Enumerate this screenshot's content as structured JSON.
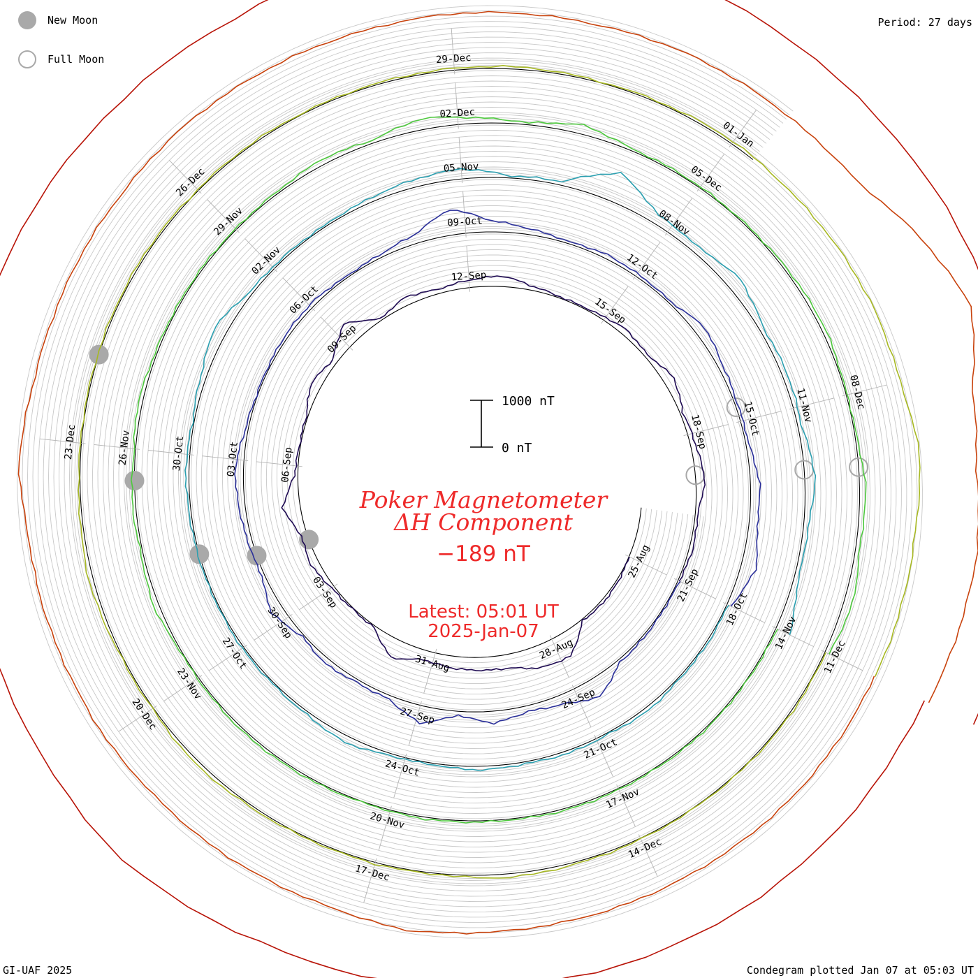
{
  "header": {
    "period": "Period: 27 days",
    "credit": "GI-UAF 2025",
    "plotted": "Condegram plotted Jan 07 at 05:03 UT"
  },
  "legend": {
    "new_moon": "New Moon",
    "full_moon": "Full Moon",
    "new_moon_color": "#a9a9a9",
    "full_moon_color": "#a9a9a9"
  },
  "center": {
    "title_line1": "Poker Magnetometer",
    "title_line2": "ΔH Component",
    "current_value": "−189 nT",
    "latest_time": "Latest: 05:01 UT",
    "latest_date": "2025-Jan-07",
    "text_color": "#ee2a2a"
  },
  "scale_bar": {
    "top_label": "1000 nT",
    "bottom_label": "0 nT"
  },
  "chart_data": {
    "type": "line",
    "plot_style": "spiral condegram (polar time spiral)",
    "period_days": 27,
    "grid": true,
    "units": "nT",
    "date_labels": [
      "25-Aug",
      "28-Aug",
      "31-Aug",
      "03-Sep",
      "06-Sep",
      "09-Sep",
      "12-Sep",
      "15-Sep",
      "18-Sep",
      "21-Sep",
      "24-Sep",
      "27-Sep",
      "30-Sep",
      "03-Oct",
      "06-Oct",
      "09-Oct",
      "12-Oct",
      "15-Oct",
      "18-Oct",
      "21-Oct",
      "24-Oct",
      "27-Oct",
      "30-Oct",
      "02-Nov",
      "05-Nov",
      "08-Nov",
      "11-Nov",
      "14-Nov",
      "17-Nov",
      "20-Nov",
      "23-Nov",
      "26-Nov",
      "29-Nov",
      "02-Dec",
      "05-Dec",
      "08-Dec",
      "11-Dec",
      "14-Dec",
      "17-Dec",
      "20-Dec",
      "23-Dec",
      "26-Dec",
      "29-Dec",
      "01-Jan"
    ],
    "series": [
      {
        "color": "#1e0a52",
        "values": [
          0,
          40,
          60,
          30,
          520,
          480,
          300,
          280,
          260,
          200,
          420,
          40,
          20,
          60,
          180,
          120,
          380,
          70,
          20,
          30,
          220,
          100,
          450,
          30,
          180,
          90,
          160,
          230,
          80,
          20,
          40,
          130,
          60,
          230,
          60,
          110,
          200,
          50,
          80,
          30
        ]
      },
      {
        "color": "#2a2f9a",
        "values": [
          30,
          20,
          40,
          60,
          420,
          200,
          120,
          260,
          80,
          380,
          80,
          60,
          120,
          40,
          260,
          60,
          90,
          140,
          180,
          60,
          20,
          40,
          70,
          80,
          30,
          60,
          180,
          560,
          240,
          120,
          40,
          90,
          60,
          40,
          220,
          100,
          50,
          60,
          200,
          180,
          330,
          90
        ]
      },
      {
        "color": "#2a9fb0",
        "values": [
          20,
          40,
          30,
          80,
          30,
          60,
          40,
          80,
          30,
          40,
          150,
          60,
          30,
          40,
          20,
          30,
          40,
          70,
          30,
          120,
          280,
          60,
          40,
          30,
          80,
          160,
          220,
          40,
          80,
          650,
          200,
          140,
          300,
          90,
          110,
          80,
          230,
          100,
          90,
          330
        ]
      },
      {
        "color": "#4ec93e",
        "values": [
          30,
          20,
          20,
          30,
          20,
          30,
          40,
          20,
          30,
          40,
          10,
          30,
          40,
          50,
          30,
          20,
          120,
          40,
          70,
          30,
          90,
          40,
          30,
          30,
          20,
          40,
          120,
          60,
          240,
          120,
          40,
          200,
          40,
          30,
          20,
          30,
          60,
          80,
          20,
          30,
          140,
          80,
          190,
          100
        ]
      },
      {
        "color": "#a7b822",
        "values": [
          20,
          30,
          20,
          10,
          20,
          40,
          80,
          20,
          30,
          20,
          40,
          80,
          20,
          30,
          100,
          40,
          20,
          20,
          30,
          40,
          20,
          30,
          20,
          30,
          40,
          50,
          20,
          30,
          60,
          20,
          30,
          40,
          20,
          160,
          60,
          40,
          30
        ]
      },
      {
        "color": "#c8420c",
        "values": [
          10,
          20,
          30,
          20,
          10,
          20,
          30,
          60,
          120,
          30,
          20,
          30,
          10,
          40,
          20,
          30,
          20,
          150,
          40,
          20,
          30,
          20,
          50,
          40,
          30,
          20,
          40,
          30,
          20,
          50,
          40,
          30,
          60,
          480,
          820,
          320,
          180,
          260,
          200,
          140
        ]
      },
      {
        "color": "#b81408",
        "values": [
          30,
          40,
          50,
          60,
          80,
          120,
          320,
          200,
          160,
          90,
          260,
          200,
          160,
          320,
          360,
          280,
          140,
          100,
          90,
          60,
          40
        ]
      }
    ]
  }
}
